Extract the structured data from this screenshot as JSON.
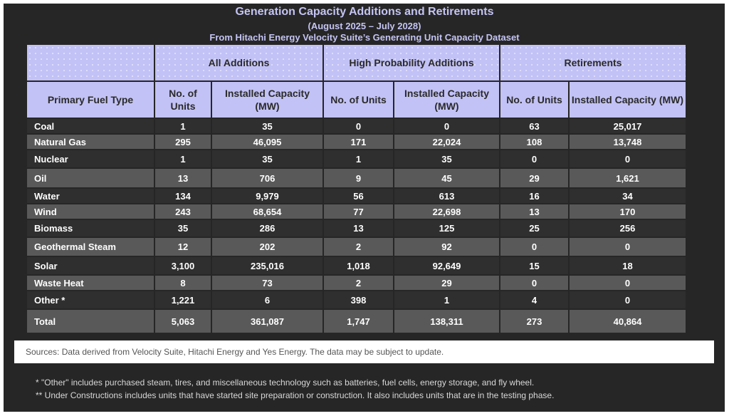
{
  "title": "Generation Capacity Additions and Retirements",
  "period": "(August 2025 – July 2028)",
  "subtitle": "From Hitachi Energy Velocity Suite’s Generating Unit Capacity Dataset",
  "groups": [
    "All Additions",
    "High Probability Additions",
    "Retirements"
  ],
  "subheaders": {
    "fuel": "Primary Fuel Type",
    "units": "No. of Units",
    "capacity": "Installed Capacity (MW)"
  },
  "rows": [
    {
      "fuel": "Coal",
      "vals": [
        "1",
        "35",
        "0",
        "0",
        "63",
        "25,017"
      ]
    },
    {
      "fuel": "Natural Gas",
      "vals": [
        "295",
        "46,095",
        "171",
        "22,024",
        "108",
        "13,748"
      ]
    },
    {
      "fuel": "Nuclear",
      "vals": [
        "1",
        "35",
        "1",
        "35",
        "0",
        "0"
      ]
    },
    {
      "fuel": "Oil",
      "vals": [
        "13",
        "706",
        "9",
        "45",
        "29",
        "1,621"
      ]
    },
    {
      "fuel": "Water",
      "vals": [
        "134",
        "9,979",
        "56",
        "613",
        "16",
        "34"
      ]
    },
    {
      "fuel": "Wind",
      "vals": [
        "243",
        "68,654",
        "77",
        "22,698",
        "13",
        "170"
      ]
    },
    {
      "fuel": "Biomass",
      "vals": [
        "35",
        "286",
        "13",
        "125",
        "25",
        "256"
      ]
    },
    {
      "fuel": "Geothermal Steam",
      "vals": [
        "12",
        "202",
        "2",
        "92",
        "0",
        "0"
      ]
    },
    {
      "fuel": "Solar",
      "vals": [
        "3,100",
        "235,016",
        "1,018",
        "92,649",
        "15",
        "18"
      ]
    },
    {
      "fuel": "Waste Heat",
      "vals": [
        "8",
        "73",
        "2",
        "29",
        "0",
        "0"
      ]
    },
    {
      "fuel": "Other *",
      "vals": [
        "1,221",
        "6",
        "398",
        "1",
        "4",
        "0"
      ]
    },
    {
      "fuel": "Total",
      "vals": [
        "5,063",
        "361,087",
        "1,747",
        "138,311",
        "273",
        "40,864"
      ]
    }
  ],
  "sources": "Sources:  Data derived from Velocity Suite, Hitachi Energy and Yes Energy.  The data may be subject to update.",
  "notes": [
    "* \"Other\" includes purchased steam, tires, and miscellaneous technology such as batteries, fuel cells, energy storage, and fly wheel.",
    "** Under Constructions includes units that have started site preparation or construction.  It also includes units that are in the testing phase."
  ],
  "colors": {
    "header": "#c2c2f6",
    "title": "#c4c4f4",
    "background": "#262626",
    "row_dark": "#2f2f2f",
    "row_light": "#595959"
  }
}
